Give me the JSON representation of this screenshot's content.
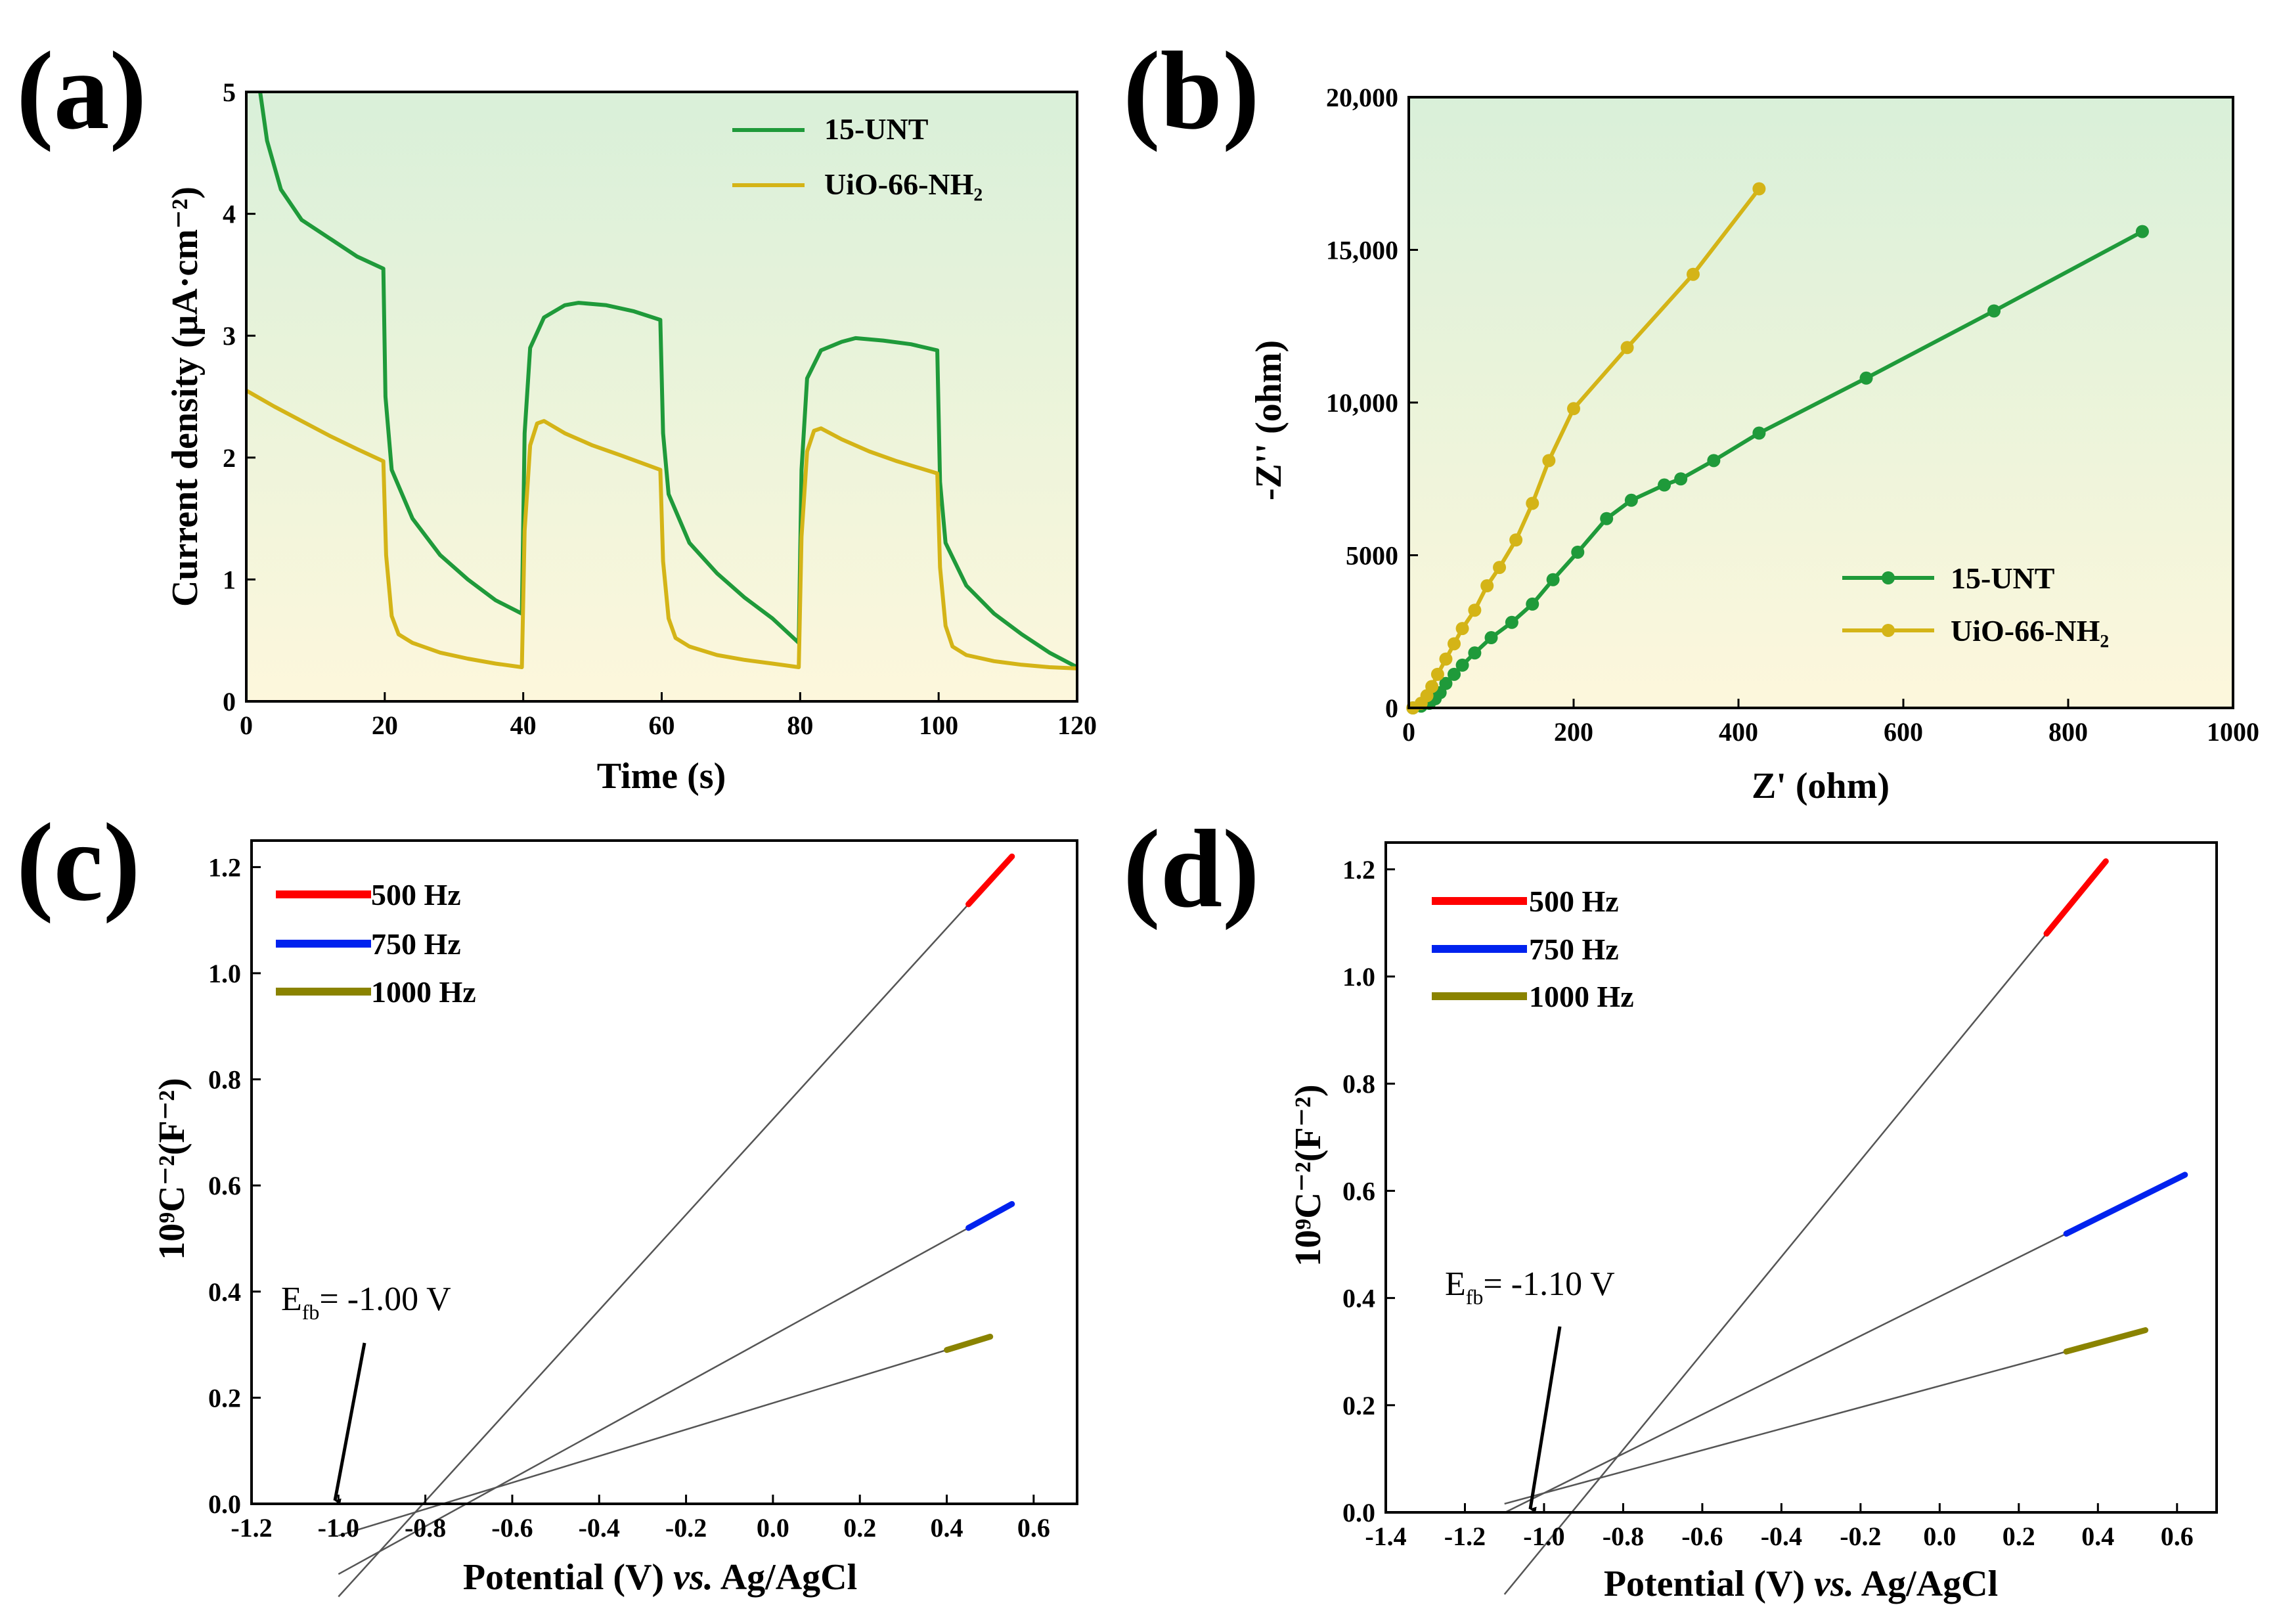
{
  "panels": [
    {
      "letter": "(a)"
    },
    {
      "letter": "(b)"
    },
    {
      "letter": "(c)"
    },
    {
      "letter": "(d)"
    }
  ],
  "colors": {
    "green": "#1f9a3a",
    "yellow": "#d4b417",
    "red": "#ff0000",
    "blue": "#0022ee",
    "olive": "#8a8300",
    "fit": "#555555",
    "bg_top": "#d9f0d9",
    "bg_bottom": "#fdf7dc"
  },
  "chart_data": [
    {
      "panel": "(a)",
      "type": "line",
      "title": "",
      "xlabel": "Time (s)",
      "ylabel": "Current density (μA·cm⁻²)",
      "xlim": [
        0,
        120
      ],
      "ylim": [
        0,
        5
      ],
      "xticks": [
        0,
        20,
        40,
        60,
        80,
        100,
        120
      ],
      "yticks": [
        0,
        1,
        2,
        3,
        4,
        5
      ],
      "legend": [
        "15-UNT",
        "UiO-66-NH₂"
      ],
      "series": [
        {
          "name": "15-UNT",
          "color": "green",
          "x": [
            2,
            3,
            5,
            8,
            12,
            16,
            19.8,
            20.1,
            21,
            24,
            28,
            32,
            36,
            39.8,
            40.2,
            41,
            43,
            46,
            48,
            52,
            56,
            59.8,
            60.2,
            61,
            64,
            68,
            72,
            76,
            79.8,
            80.2,
            81,
            83,
            86,
            88,
            92,
            96,
            99.8,
            100.2,
            101,
            104,
            108,
            112,
            116,
            120
          ],
          "y": [
            5,
            4.6,
            4.2,
            3.95,
            3.8,
            3.65,
            3.55,
            2.5,
            1.9,
            1.5,
            1.2,
            1.0,
            0.83,
            0.72,
            2.2,
            2.9,
            3.15,
            3.25,
            3.27,
            3.25,
            3.2,
            3.13,
            2.2,
            1.7,
            1.3,
            1.05,
            0.85,
            0.68,
            0.48,
            1.9,
            2.65,
            2.88,
            2.95,
            2.98,
            2.96,
            2.93,
            2.88,
            1.8,
            1.3,
            0.95,
            0.72,
            0.55,
            0.4,
            0.28
          ]
        },
        {
          "name": "UiO-66-NH₂",
          "color": "yellow",
          "x": [
            0,
            4,
            8,
            12,
            16,
            19.8,
            20.2,
            21,
            22,
            24,
            28,
            32,
            36,
            39.8,
            40.2,
            41,
            42,
            43,
            46,
            50,
            54,
            59.8,
            60.2,
            61,
            62,
            64,
            68,
            72,
            76,
            79.8,
            80.2,
            81,
            82,
            83,
            86,
            90,
            94,
            99.8,
            100.2,
            101,
            102,
            104,
            108,
            112,
            116,
            120
          ],
          "y": [
            2.55,
            2.42,
            2.3,
            2.18,
            2.07,
            1.97,
            1.2,
            0.7,
            0.55,
            0.48,
            0.4,
            0.35,
            0.31,
            0.28,
            1.4,
            2.1,
            2.28,
            2.3,
            2.2,
            2.1,
            2.02,
            1.9,
            1.15,
            0.68,
            0.52,
            0.45,
            0.38,
            0.34,
            0.31,
            0.28,
            1.35,
            2.05,
            2.22,
            2.24,
            2.15,
            2.05,
            1.97,
            1.87,
            1.1,
            0.62,
            0.45,
            0.38,
            0.33,
            0.3,
            0.28,
            0.27
          ]
        }
      ]
    },
    {
      "panel": "(b)",
      "type": "line",
      "title": "",
      "xlabel": "Z' (ohm)",
      "ylabel": "-Z'' (ohm)",
      "xlim": [
        0,
        1000
      ],
      "ylim": [
        0,
        20000
      ],
      "xticks": [
        0,
        200,
        400,
        600,
        800,
        1000
      ],
      "yticks": [
        0,
        5000,
        10000,
        15000,
        20000
      ],
      "ytick_labels": [
        "0",
        "5000",
        "10,000",
        "15,000",
        "20,000"
      ],
      "legend": [
        "15-UNT",
        "UiO-66-NH₂"
      ],
      "series": [
        {
          "name": "15-UNT",
          "color": "green",
          "x": [
            5,
            15,
            25,
            32,
            38,
            45,
            55,
            65,
            80,
            100,
            125,
            150,
            175,
            205,
            240,
            270,
            310,
            330,
            370,
            425,
            555,
            710,
            890
          ],
          "y": [
            0,
            60,
            150,
            300,
            500,
            800,
            1100,
            1400,
            1800,
            2300,
            2800,
            3400,
            4200,
            5100,
            6200,
            6800,
            7300,
            7500,
            8100,
            9000,
            10800,
            13000,
            15600
          ]
        },
        {
          "name": "UiO-66-NH₂",
          "color": "yellow",
          "x": [
            5,
            15,
            22,
            28,
            35,
            45,
            55,
            65,
            80,
            95,
            110,
            130,
            150,
            170,
            200,
            265,
            345,
            425
          ],
          "y": [
            0,
            150,
            400,
            700,
            1100,
            1600,
            2100,
            2600,
            3200,
            4000,
            4600,
            5500,
            6700,
            8100,
            9800,
            11800,
            14200,
            17000
          ]
        }
      ]
    },
    {
      "panel": "(c)",
      "type": "line",
      "title": "",
      "xlabel": "Potential (V) vs. Ag/AgCl",
      "ylabel": "10⁹C⁻²(F⁻²)",
      "xlim": [
        -1.2,
        0.7
      ],
      "ylim": [
        0,
        1.25
      ],
      "xticks": [
        -1.2,
        -1.0,
        -0.8,
        -0.6,
        -0.4,
        -0.2,
        0.0,
        0.2,
        0.4,
        0.6
      ],
      "yticks": [
        0.0,
        0.2,
        0.4,
        0.6,
        0.8,
        1.0,
        1.2
      ],
      "legend": [
        "500 Hz",
        "750 Hz",
        "1000 Hz"
      ],
      "annotation": {
        "label": "E",
        "sub": "fb",
        "value": "= -1.00 V",
        "x": -1.0,
        "y": 0.0
      },
      "series": [
        {
          "name": "500 Hz",
          "color": "red",
          "x": [
            0.45,
            0.55
          ],
          "y": [
            1.13,
            1.22
          ],
          "fit_from": -1.0
        },
        {
          "name": "750 Hz",
          "color": "blue",
          "x": [
            0.45,
            0.55
          ],
          "y": [
            0.52,
            0.565
          ],
          "fit_from": -1.0
        },
        {
          "name": "1000 Hz",
          "color": "olive",
          "x": [
            0.4,
            0.5
          ],
          "y": [
            0.29,
            0.315
          ],
          "fit_from": -1.0
        }
      ]
    },
    {
      "panel": "(d)",
      "type": "line",
      "title": "",
      "xlabel": "Potential (V) vs. Ag/AgCl",
      "ylabel": "10⁹C⁻²(F⁻²)",
      "xlim": [
        -1.4,
        0.7
      ],
      "ylim": [
        0,
        1.25
      ],
      "xticks": [
        -1.4,
        -1.2,
        -1.0,
        -0.8,
        -0.6,
        -0.4,
        -0.2,
        0.0,
        0.2,
        0.4,
        0.6
      ],
      "yticks": [
        0.0,
        0.2,
        0.4,
        0.6,
        0.8,
        1.0,
        1.2
      ],
      "legend": [
        "500 Hz",
        "750 Hz",
        "1000 Hz"
      ],
      "annotation": {
        "label": "E",
        "sub": "fb",
        "value": "= -1.10 V",
        "x": -1.1,
        "y": 0.0
      },
      "series": [
        {
          "name": "500 Hz",
          "color": "red",
          "x": [
            0.27,
            0.42
          ],
          "y": [
            1.08,
            1.215
          ],
          "fit_from": -1.1
        },
        {
          "name": "750 Hz",
          "color": "blue",
          "x": [
            0.32,
            0.62
          ],
          "y": [
            0.52,
            0.63
          ],
          "fit_from": -1.1
        },
        {
          "name": "1000 Hz",
          "color": "olive",
          "x": [
            0.32,
            0.52
          ],
          "y": [
            0.3,
            0.34
          ],
          "fit_from": -1.1
        }
      ]
    }
  ]
}
